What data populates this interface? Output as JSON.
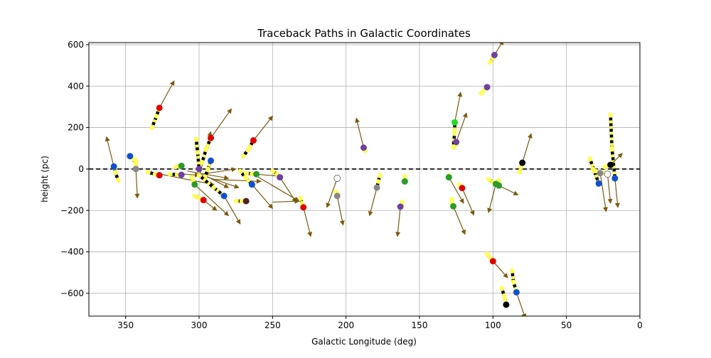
{
  "chart_data": {
    "type": "scatter",
    "title": "Traceback Paths in Galactic Coordinates",
    "xlabel": "Galactic Longitude (deg)",
    "ylabel": "height (pc)",
    "xlim": [
      375,
      0
    ],
    "ylim": [
      -710,
      610
    ],
    "xticks": [
      350,
      300,
      250,
      200,
      150,
      100,
      50,
      0
    ],
    "yticks": [
      600,
      400,
      200,
      0,
      -200,
      -400,
      -600
    ],
    "grid": true,
    "reference_line": {
      "y": 0,
      "style": "dashed",
      "color": "#000000"
    },
    "path_color": "#ffff55",
    "arrow_color": "#7a5a10",
    "objects": [
      {
        "x": 327,
        "y": 295,
        "color": "#e00000",
        "trail": [
          [
            332,
            200
          ],
          [
            329,
            255
          ],
          [
            327,
            295
          ]
        ],
        "arrow": [
          317,
          425
        ]
      },
      {
        "x": 358,
        "y": 12,
        "color": "#1050d0",
        "trail": [
          [
            355,
            -55
          ],
          [
            357,
            -15
          ],
          [
            358,
            12
          ]
        ],
        "arrow": [
          363,
          155
        ]
      },
      {
        "x": 347,
        "y": 62,
        "color": "#1050d0",
        "trail": [
          [
            343,
            28
          ],
          [
            345,
            48
          ],
          [
            347,
            62
          ]
        ],
        "arrow": null
      },
      {
        "x": 343,
        "y": 0,
        "color": "#888888",
        "trail": [
          [
            343,
            40
          ],
          [
            343,
            20
          ],
          [
            343,
            0
          ]
        ],
        "arrow": [
          342,
          -140
        ]
      },
      {
        "x": 327,
        "y": -30,
        "color": "#e00000",
        "trail": [
          [
            335,
            -15
          ],
          [
            330,
            -25
          ],
          [
            327,
            -30
          ]
        ],
        "arrow": null
      },
      {
        "x": 312,
        "y": -28,
        "color": "#7040a0",
        "trail": [
          [
            320,
            -25
          ],
          [
            315,
            -27
          ],
          [
            312,
            -28
          ]
        ],
        "arrow": null
      },
      {
        "x": 312,
        "y": 15,
        "color": "#2a9a2a",
        "trail": [
          [
            316,
            10
          ],
          [
            314,
            13
          ],
          [
            312,
            15
          ]
        ],
        "arrow": null
      },
      {
        "x": 300,
        "y": 0,
        "color": "#7040a0",
        "trail": [
          [
            302,
            145
          ],
          [
            301,
            80
          ],
          [
            300,
            0
          ]
        ],
        "arrow": null
      },
      {
        "x": 303,
        "y": -75,
        "color": "#2a9a2a",
        "trail": [
          [
            305,
            -40
          ],
          [
            304,
            -60
          ],
          [
            303,
            -75
          ]
        ],
        "arrow": [
          280,
          -225
        ]
      },
      {
        "x": 297,
        "y": -150,
        "color": "#e00000",
        "trail": [
          [
            303,
            -130
          ],
          [
            300,
            -140
          ],
          [
            297,
            -150
          ]
        ],
        "arrow": [
          288,
          -200
        ]
      },
      {
        "x": 292,
        "y": 150,
        "color": "#e00000",
        "trail": [
          [
            298,
            30
          ],
          [
            295,
            100
          ],
          [
            292,
            150
          ]
        ],
        "arrow": [
          278,
          290
        ]
      },
      {
        "x": 292,
        "y": 40,
        "color": "#1050d0",
        "trail": [
          [
            296,
            -40
          ],
          [
            294,
            0
          ],
          [
            292,
            40
          ]
        ],
        "arrow": null
      },
      {
        "x": 283,
        "y": -130,
        "color": "#1050d0",
        "trail": [
          [
            300,
            -30
          ],
          [
            290,
            -90
          ],
          [
            283,
            -130
          ]
        ],
        "arrow": [
          272,
          -265
        ]
      },
      {
        "x": 268,
        "y": -155,
        "color": "#502020",
        "trail": [
          [
            275,
            -155
          ],
          [
            271,
            -155
          ],
          [
            268,
            -155
          ]
        ],
        "arrow": null
      },
      {
        "x": 264,
        "y": -75,
        "color": "#1050d0",
        "trail": [
          [
            272,
            -10
          ],
          [
            268,
            -45
          ],
          [
            264,
            -75
          ]
        ],
        "arrow": [
          250,
          -190
        ]
      },
      {
        "x": 263,
        "y": 138,
        "color": "#e00000",
        "trail": [
          [
            270,
            60
          ],
          [
            266,
            100
          ],
          [
            263,
            138
          ]
        ],
        "arrow": [
          250,
          255
        ]
      },
      {
        "x": 261,
        "y": -25,
        "color": "#2a9a2a",
        "trail": [
          [
            268,
            -20
          ],
          [
            264,
            -23
          ],
          [
            261,
            -25
          ]
        ],
        "arrow": null
      },
      {
        "x": 245,
        "y": -40,
        "color": "#7040a0",
        "trail": [
          [
            250,
            -10
          ],
          [
            247,
            -25
          ],
          [
            245,
            -40
          ]
        ],
        "arrow": [
          234,
          -160
        ]
      },
      {
        "x": 229,
        "y": -185,
        "color": "#e00000",
        "trail": [
          [
            231,
            -140
          ],
          [
            230,
            -165
          ],
          [
            229,
            -185
          ]
        ],
        "arrow": [
          224,
          -325
        ]
      },
      {
        "x": 206,
        "y": -45,
        "color": "#ffffff",
        "trail": [
          [
            207,
            -45
          ],
          [
            206,
            -45
          ]
        ],
        "arrow": [
          213,
          -185
        ]
      },
      {
        "x": 206,
        "y": -130,
        "color": "#888888",
        "trail": [
          [
            207,
            -110
          ],
          [
            206,
            -120
          ],
          [
            206,
            -130
          ]
        ],
        "arrow": [
          202,
          -270
        ]
      },
      {
        "x": 188,
        "y": 103,
        "color": "#7040a0",
        "trail": [
          [
            187,
            88
          ],
          [
            188,
            95
          ],
          [
            188,
            103
          ]
        ],
        "arrow": [
          193,
          245
        ]
      },
      {
        "x": 179,
        "y": -90,
        "color": "#888888",
        "trail": [
          [
            177,
            -30
          ],
          [
            178,
            -60
          ],
          [
            179,
            -90
          ]
        ],
        "arrow": [
          184,
          -225
        ]
      },
      {
        "x": 160,
        "y": -60,
        "color": "#2a9a2a",
        "trail": [
          [
            160,
            -35
          ],
          [
            160,
            -48
          ],
          [
            160,
            -60
          ]
        ],
        "arrow": null
      },
      {
        "x": 163,
        "y": -182,
        "color": "#7040a0",
        "trail": [
          [
            162,
            -160
          ],
          [
            162,
            -172
          ],
          [
            163,
            -182
          ]
        ],
        "arrow": [
          165,
          -325
        ]
      },
      {
        "x": 130,
        "y": -40,
        "color": "#2a9a2a",
        "trail": [
          [
            130,
            -30
          ],
          [
            130,
            -35
          ],
          [
            130,
            -40
          ]
        ],
        "arrow": [
          120,
          -165
        ]
      },
      {
        "x": 127,
        "y": -180,
        "color": "#2a9a2a",
        "trail": [
          [
            128,
            -145
          ],
          [
            128,
            -165
          ],
          [
            127,
            -180
          ]
        ],
        "arrow": [
          119,
          -315
        ]
      },
      {
        "x": 126,
        "y": 225,
        "color": "#22dd22",
        "trail": [
          [
            127,
            105
          ],
          [
            126,
            180
          ],
          [
            126,
            225
          ]
        ],
        "arrow": [
          122,
          370
        ]
      },
      {
        "x": 125,
        "y": 130,
        "color": "#7040a0",
        "trail": [
          [
            126,
            110
          ],
          [
            125,
            120
          ],
          [
            125,
            130
          ]
        ],
        "arrow": [
          118,
          270
        ]
      },
      {
        "x": 121,
        "y": -92,
        "color": "#e00000",
        "trail": [
          [
            123,
            -75
          ],
          [
            122,
            -85
          ],
          [
            121,
            -92
          ]
        ],
        "arrow": [
          113,
          -222
        ]
      },
      {
        "x": 104,
        "y": 395,
        "color": "#7040a0",
        "trail": [
          [
            108,
            365
          ],
          [
            106,
            380
          ],
          [
            104,
            395
          ]
        ],
        "arrow": null
      },
      {
        "x": 99,
        "y": 550,
        "color": "#7040a0",
        "trail": [
          [
            102,
            515
          ],
          [
            100,
            535
          ],
          [
            99,
            550
          ]
        ],
        "arrow": [
          93,
          620
        ]
      },
      {
        "x": 98,
        "y": -72,
        "color": "#2a9a2a",
        "trail": [
          [
            103,
            -50
          ],
          [
            100,
            -62
          ],
          [
            98,
            -72
          ]
        ],
        "arrow": [
          103,
          -210
        ]
      },
      {
        "x": 96,
        "y": -80,
        "color": "#2a9a2a",
        "trail": [
          [
            96,
            -55
          ],
          [
            96,
            -68
          ],
          [
            96,
            -80
          ]
        ],
        "arrow": [
          83,
          -125
        ]
      },
      {
        "x": 100,
        "y": -445,
        "color": "#e00000",
        "trail": [
          [
            104,
            -410
          ],
          [
            102,
            -428
          ],
          [
            100,
            -445
          ]
        ],
        "arrow": [
          90,
          -525
        ]
      },
      {
        "x": 91,
        "y": -655,
        "color": "#000000",
        "trail": [
          [
            94,
            -575
          ],
          [
            92,
            -620
          ],
          [
            91,
            -655
          ]
        ],
        "arrow": null
      },
      {
        "x": 84,
        "y": -595,
        "color": "#1050d0",
        "trail": [
          [
            87,
            -490
          ],
          [
            86,
            -545
          ],
          [
            84,
            -595
          ]
        ],
        "arrow": [
          78,
          -720
        ]
      },
      {
        "x": 80,
        "y": 30,
        "color": "#000000",
        "trail": [
          [
            82,
            -15
          ],
          [
            81,
            8
          ],
          [
            80,
            30
          ]
        ],
        "arrow": [
          74,
          170
        ]
      },
      {
        "x": 28,
        "y": -70,
        "color": "#1050d0",
        "trail": [
          [
            34,
            50
          ],
          [
            31,
            -10
          ],
          [
            28,
            -70
          ]
        ],
        "arrow": null
      },
      {
        "x": 27,
        "y": -20,
        "color": "#888888",
        "trail": [
          [
            32,
            0
          ],
          [
            30,
            -10
          ],
          [
            27,
            -20
          ]
        ],
        "arrow": [
          23,
          -205
        ]
      },
      {
        "x": 22,
        "y": -25,
        "color": "#ffffff",
        "trail": [
          [
            24,
            -20
          ],
          [
            23,
            -22
          ],
          [
            22,
            -25
          ]
        ],
        "arrow": [
          20,
          -165
        ]
      },
      {
        "x": 17,
        "y": -45,
        "color": "#1050d0",
        "trail": [
          [
            20,
            262
          ],
          [
            19,
            100
          ],
          [
            17,
            -45
          ]
        ],
        "arrow": [
          15,
          -185
        ]
      },
      {
        "x": 20,
        "y": 20,
        "color": "#000000",
        "trail": [
          [
            24,
            10
          ],
          [
            22,
            15
          ],
          [
            20,
            20
          ]
        ],
        "arrow": [
          12,
          75
        ]
      }
    ],
    "free_arrows": [
      {
        "from": [
          330,
          -20
        ],
        "to": [
          290,
          -75
        ]
      },
      {
        "from": [
          320,
          -20
        ],
        "to": [
          300,
          -30
        ]
      },
      {
        "from": [
          308,
          -10
        ],
        "to": [
          280,
          -45
        ]
      },
      {
        "from": [
          298,
          -30
        ],
        "to": [
          273,
          -90
        ]
      },
      {
        "from": [
          295,
          -35
        ],
        "to": [
          280,
          -90
        ]
      },
      {
        "from": [
          290,
          -50
        ],
        "to": [
          258,
          -60
        ]
      },
      {
        "from": [
          303,
          -30
        ],
        "to": [
          275,
          0
        ]
      },
      {
        "from": [
          300,
          -40
        ],
        "to": [
          292,
          180
        ]
      },
      {
        "from": [
          262,
          -25
        ],
        "to": [
          244,
          -35
        ]
      },
      {
        "from": [
          262,
          -30
        ],
        "to": [
          232,
          -155
        ]
      },
      {
        "from": [
          250,
          -160
        ],
        "to": [
          232,
          -155
        ]
      }
    ]
  }
}
